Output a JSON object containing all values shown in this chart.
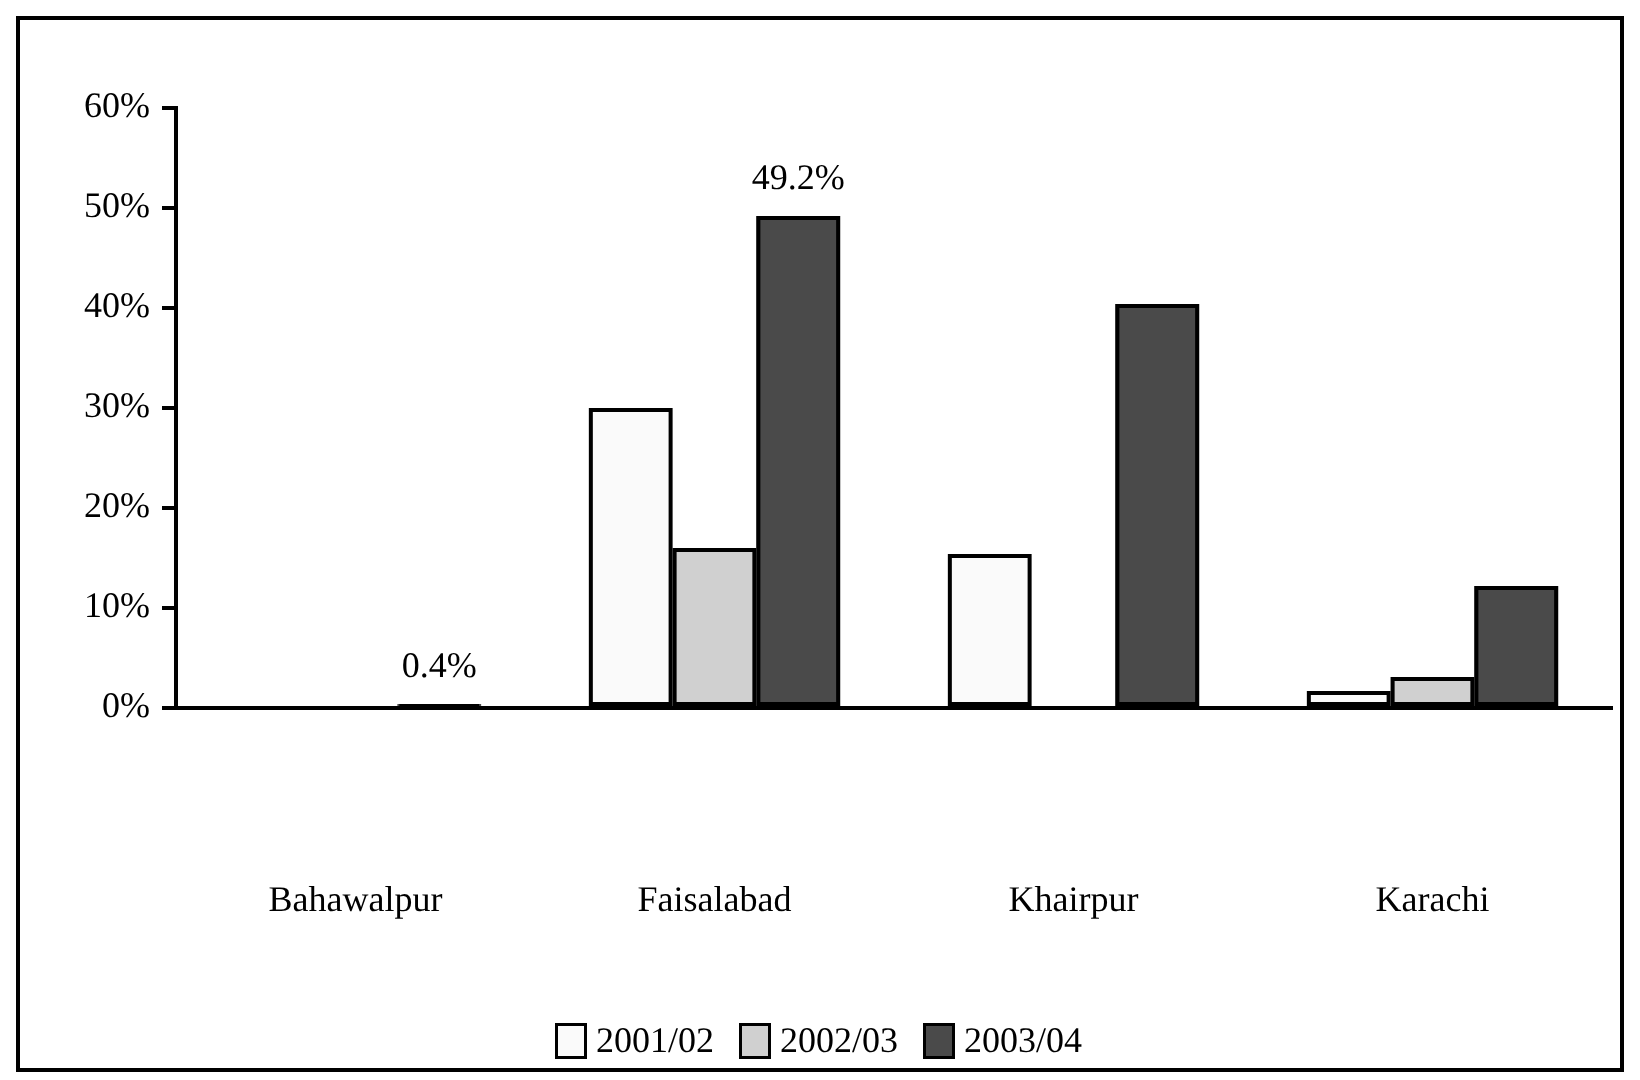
{
  "chart_data": {
    "type": "bar",
    "categories": [
      "Bahawalpur",
      "Faisalabad",
      "Khairpur",
      "Karachi"
    ],
    "series": [
      {
        "name": "2001/02",
        "color": "#fafafa",
        "values": [
          null,
          30,
          15.4,
          1.7
        ]
      },
      {
        "name": "2002/03",
        "color": "#d0d0d0",
        "values": [
          null,
          16,
          null,
          3.1
        ]
      },
      {
        "name": "2003/04",
        "color": "#4a4a4a",
        "values": [
          0.4,
          49.2,
          40.4,
          12.2
        ],
        "value_labels": [
          "0.4%",
          "49.2%",
          null,
          null
        ]
      }
    ],
    "ylim": [
      0,
      60
    ],
    "yticks": [
      {
        "value": 0,
        "label": "0%"
      },
      {
        "value": 10,
        "label": "10%"
      },
      {
        "value": 20,
        "label": "20%"
      },
      {
        "value": 30,
        "label": "30%"
      },
      {
        "value": 40,
        "label": "40%"
      },
      {
        "value": 50,
        "label": "50%"
      },
      {
        "value": 60,
        "label": "60%"
      }
    ],
    "legend": "bottom"
  }
}
